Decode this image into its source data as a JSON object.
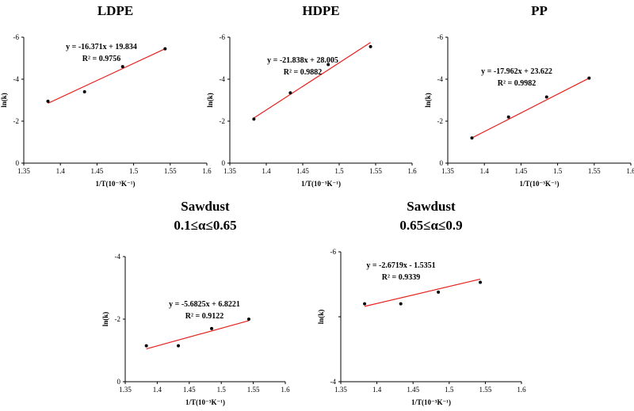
{
  "chart_data": [
    {
      "type": "scatter",
      "title": "LDPE",
      "title_line2": "",
      "xlabel": "1/T(10⁻³K⁻¹)",
      "ylabel": "ln(k)",
      "xlim": [
        1.35,
        1.6
      ],
      "ylim": [
        0,
        -6
      ],
      "x_ticks": [
        "1.35",
        "1.4",
        "1.45",
        "1.5",
        "1.55",
        "1.6"
      ],
      "y_ticks": [
        "0",
        "-2",
        "-4",
        "-6"
      ],
      "points": [
        {
          "x": 1.383,
          "y": -2.95
        },
        {
          "x": 1.433,
          "y": -3.4
        },
        {
          "x": 1.485,
          "y": -4.6
        },
        {
          "x": 1.543,
          "y": -5.45
        }
      ],
      "fit": {
        "x1": 1.383,
        "y1": -2.85,
        "x2": 1.543,
        "y2": -5.45
      },
      "equation": "y = -16.371x + 19.834",
      "r2": "R² = 0.9756"
    },
    {
      "type": "scatter",
      "title": "HDPE",
      "title_line2": "",
      "xlabel": "1/T(10⁻³K⁻¹)",
      "ylabel": "ln(k)",
      "xlim": [
        1.35,
        1.6
      ],
      "ylim": [
        0,
        -6
      ],
      "x_ticks": [
        "1.35",
        "1.4",
        "1.45",
        "1.5",
        "1.55",
        "1.6"
      ],
      "y_ticks": [
        "0",
        "-2",
        "-4",
        "-6"
      ],
      "points": [
        {
          "x": 1.383,
          "y": -2.1
        },
        {
          "x": 1.433,
          "y": -3.35
        },
        {
          "x": 1.485,
          "y": -4.7
        },
        {
          "x": 1.543,
          "y": -5.55
        }
      ],
      "fit": {
        "x1": 1.383,
        "y1": -2.15,
        "x2": 1.543,
        "y2": -5.75
      },
      "equation": "y = -21.838x + 28.005",
      "r2": "R² = 0.9882"
    },
    {
      "type": "scatter",
      "title": "PP",
      "title_line2": "",
      "xlabel": "1/T(10⁻³K⁻¹)",
      "ylabel": "ln(k)",
      "xlim": [
        1.35,
        1.6
      ],
      "ylim": [
        0,
        -6
      ],
      "x_ticks": [
        "1.35",
        "1.4",
        "1.45",
        "1.5",
        "1.55",
        "1.6"
      ],
      "y_ticks": [
        "0",
        "-2",
        "-4",
        "-6"
      ],
      "points": [
        {
          "x": 1.383,
          "y": -1.2
        },
        {
          "x": 1.433,
          "y": -2.2
        },
        {
          "x": 1.485,
          "y": -3.15
        },
        {
          "x": 1.543,
          "y": -4.05
        }
      ],
      "fit": {
        "x1": 1.383,
        "y1": -1.2,
        "x2": 1.543,
        "y2": -4.05
      },
      "equation": "y = -17.962x + 23.622",
      "r2": "R² = 0.9982"
    },
    {
      "type": "scatter",
      "title": "Sawdust",
      "title_line2": "0.1≤α≤0.65",
      "xlabel": "1/T(10⁻³K⁻¹)",
      "ylabel": "ln(k)",
      "xlim": [
        1.35,
        1.6
      ],
      "ylim": [
        0,
        -4
      ],
      "x_ticks": [
        "1.35",
        "1.4",
        "1.45",
        "1.5",
        "1.55",
        "1.6"
      ],
      "x_ticks_sub": [
        "1.45",
        "1.55"
      ],
      "y_ticks": [
        "0",
        "-2",
        "-4"
      ],
      "points": [
        {
          "x": 1.383,
          "y": -1.15
        },
        {
          "x": 1.433,
          "y": -1.15
        },
        {
          "x": 1.485,
          "y": -1.7
        },
        {
          "x": 1.543,
          "y": -2.0
        }
      ],
      "fit": {
        "x1": 1.383,
        "y1": -1.05,
        "x2": 1.543,
        "y2": -1.95
      },
      "equation": "y = -5.6825x + 6.8221",
      "r2": "R² = 0.9122"
    },
    {
      "type": "scatter",
      "title": "Sawdust",
      "title_line2": "0.65≤α≤0.9",
      "xlabel": "1/T(10⁻³K⁻¹)",
      "ylabel": "ln(k)",
      "xlim": [
        1.35,
        1.6
      ],
      "ylim": [
        -4,
        -6
      ],
      "x_ticks": [
        "1.35",
        "1.4",
        "1.45",
        "1.5",
        "1.55",
        "1.6"
      ],
      "y_ticks": [
        "-4",
        "-5",
        "-6"
      ],
      "y_tick_labels_shown": [
        "-4",
        "-6"
      ],
      "points": [
        {
          "x": 1.383,
          "y": -5.2
        },
        {
          "x": 1.433,
          "y": -5.2
        },
        {
          "x": 1.485,
          "y": -5.38
        },
        {
          "x": 1.543,
          "y": -5.53
        }
      ],
      "fit": {
        "x1": 1.383,
        "y1": -5.16,
        "x2": 1.543,
        "y2": -5.58
      },
      "equation": "y = -2.6719x - 1.5351",
      "r2": "R² = 0.9339"
    }
  ]
}
